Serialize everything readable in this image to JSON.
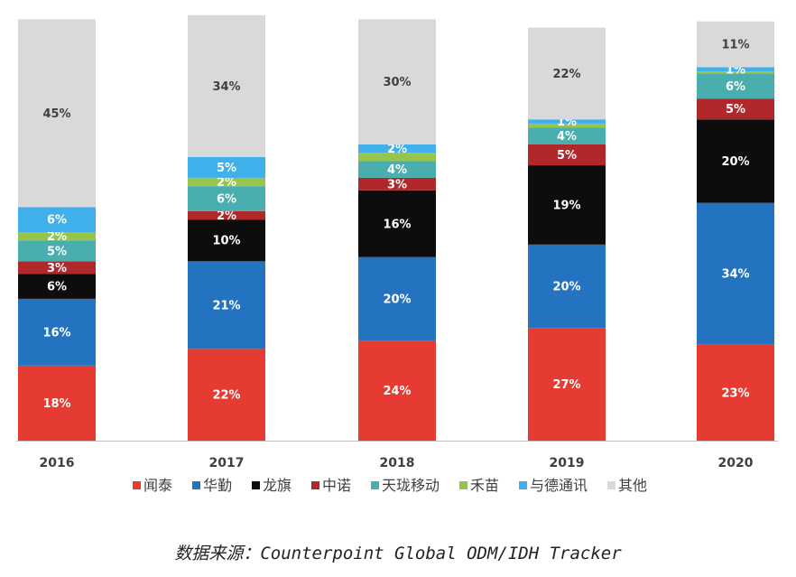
{
  "chart_data": {
    "type": "bar",
    "stacked": true,
    "categories": [
      "2016",
      "2017",
      "2018",
      "2019",
      "2020"
    ],
    "series": [
      {
        "name": "闻泰",
        "color": "#e63b32",
        "values": [
          18,
          22,
          24,
          27,
          23
        ],
        "labels": [
          "18%",
          "22%",
          "24%",
          "27%",
          "23%"
        ]
      },
      {
        "name": "华勤",
        "color": "#2473c1",
        "values": [
          16,
          21,
          20,
          20,
          34
        ],
        "labels": [
          "16%",
          "21%",
          "20%",
          "20%",
          "34%"
        ]
      },
      {
        "name": "龙旗",
        "color": "#0d0d0d",
        "values": [
          6,
          10,
          16,
          19,
          20
        ],
        "labels": [
          "6%",
          "10%",
          "16%",
          "19%",
          "20%"
        ]
      },
      {
        "name": "中诺",
        "color": "#b0282a",
        "values": [
          3,
          2,
          3,
          5,
          5
        ],
        "labels": [
          "3%",
          "2%",
          "3%",
          "5%",
          "5%"
        ]
      },
      {
        "name": "天珑移动",
        "color": "#4aaeae",
        "values": [
          5,
          6,
          4,
          4,
          6
        ],
        "labels": [
          "5%",
          "6%",
          "4%",
          "4%",
          "6%"
        ]
      },
      {
        "name": "禾苗",
        "color": "#97c44b",
        "values": [
          2,
          2,
          2,
          1,
          0.5
        ],
        "labels": [
          "2%",
          "2%",
          "",
          "",
          ""
        ]
      },
      {
        "name": "与德通讯",
        "color": "#3fb0ea",
        "values": [
          6,
          5,
          2,
          1,
          1
        ],
        "labels": [
          "6%",
          "5%",
          "2%",
          "1%",
          "1%"
        ]
      },
      {
        "name": "其他",
        "color": "#d9d9d9",
        "values": [
          45,
          34,
          30,
          22,
          11
        ],
        "labels": [
          "45%",
          "34%",
          "30%",
          "22%",
          "11%"
        ]
      }
    ],
    "ylim": [
      0,
      100
    ],
    "grid": false,
    "legend": "bottom"
  },
  "source": "数据来源：Counterpoint Global ODM/IDH Tracker"
}
